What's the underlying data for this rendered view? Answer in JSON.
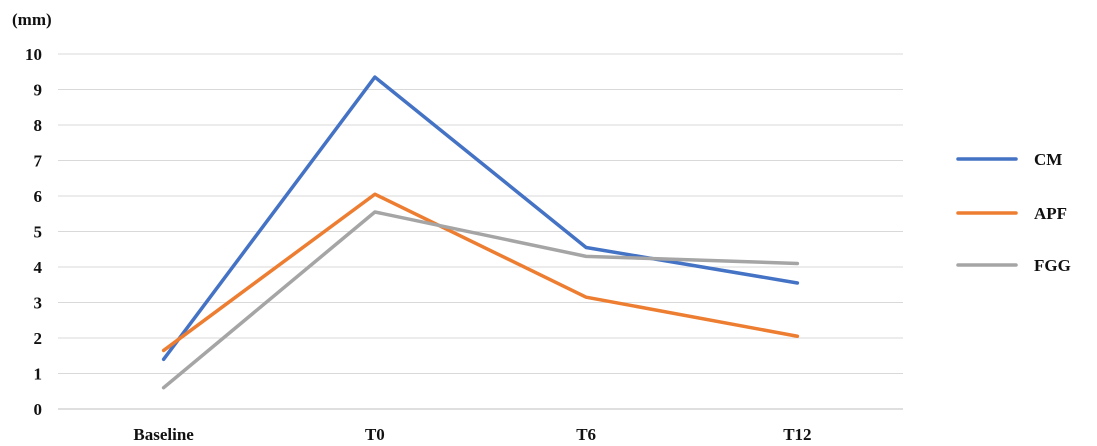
{
  "chart_data": {
    "type": "line",
    "unit_label": "(mm)",
    "categories": [
      "Baseline",
      "T0",
      "T6",
      "T12"
    ],
    "ylim": [
      0,
      10
    ],
    "yticks": [
      0,
      1,
      2,
      3,
      4,
      5,
      6,
      7,
      8,
      9,
      10
    ],
    "grid": true,
    "legend_position": "right",
    "series": [
      {
        "name": "CM",
        "color": "#4472C4",
        "values": [
          1.4,
          9.35,
          4.55,
          3.55
        ]
      },
      {
        "name": "APF",
        "color": "#ED7D31",
        "values": [
          1.65,
          6.05,
          3.15,
          2.05
        ]
      },
      {
        "name": "FGG",
        "color": "#A5A5A5",
        "values": [
          0.6,
          5.55,
          4.3,
          4.1
        ]
      }
    ]
  }
}
